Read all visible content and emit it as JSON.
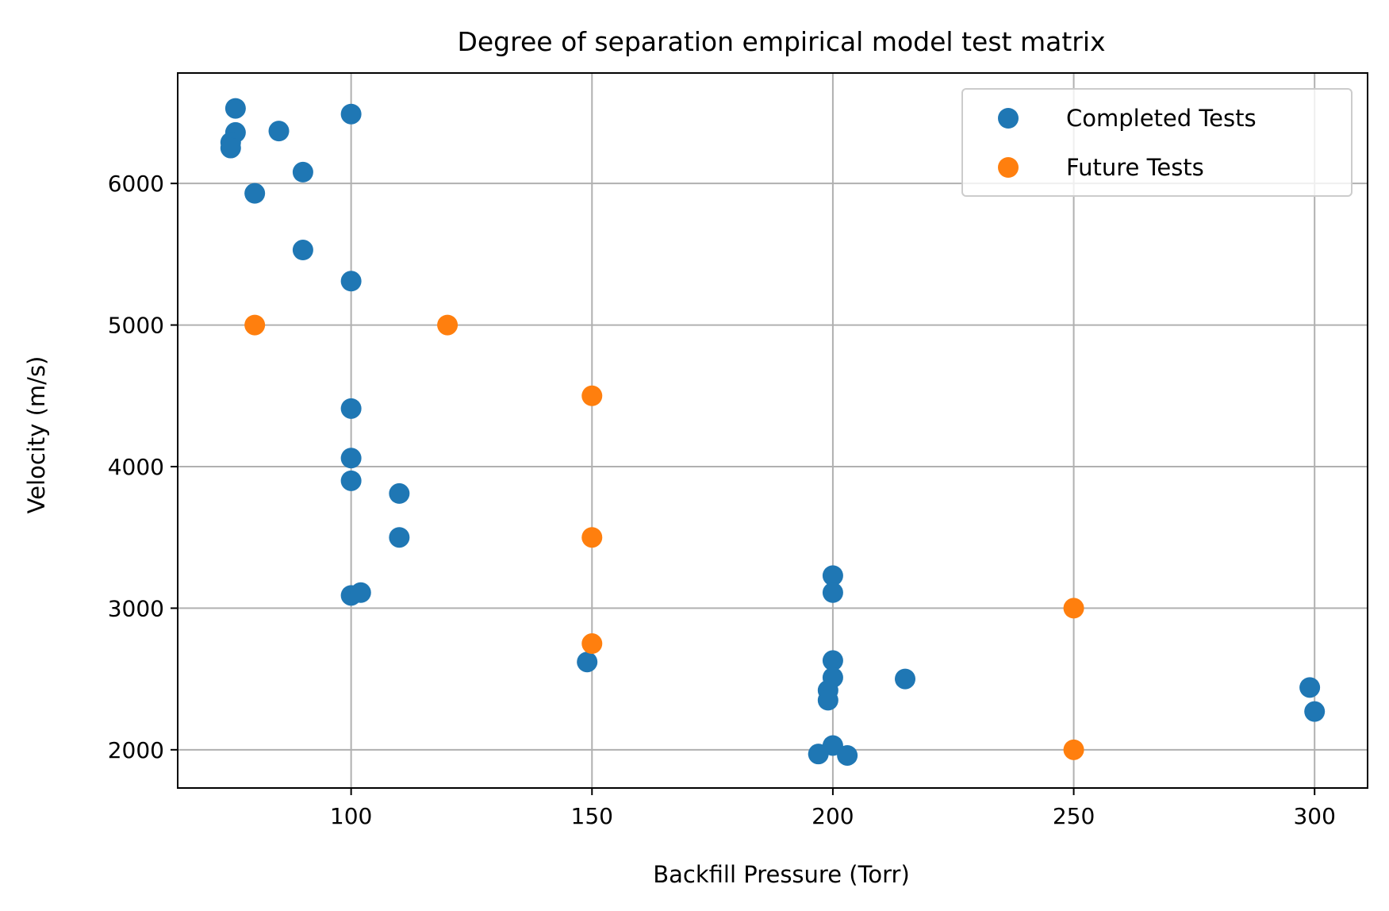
{
  "chart_data": {
    "type": "scatter",
    "title": "Degree of separation empirical model test matrix",
    "xlabel": "Backfill Pressure (Torr)",
    "ylabel": "Velocity (m/s)",
    "xlim": [
      64,
      311
    ],
    "ylim": [
      1730,
      6780
    ],
    "xticks": [
      100,
      150,
      200,
      250,
      300
    ],
    "yticks": [
      2000,
      3000,
      4000,
      5000,
      6000
    ],
    "xtick_labels": [
      "100",
      "150",
      "200",
      "250",
      "300"
    ],
    "ytick_labels": [
      "2000",
      "3000",
      "4000",
      "5000",
      "6000"
    ],
    "grid": true,
    "legend_position": "top-right",
    "series": [
      {
        "name": "Completed Tests",
        "color": "#1f77b4",
        "points": [
          [
            76,
            6530
          ],
          [
            76,
            6360
          ],
          [
            75,
            6290
          ],
          [
            75,
            6250
          ],
          [
            85,
            6370
          ],
          [
            100,
            6490
          ],
          [
            90,
            6080
          ],
          [
            80,
            5930
          ],
          [
            90,
            5530
          ],
          [
            100,
            5310
          ],
          [
            100,
            4410
          ],
          [
            100,
            4060
          ],
          [
            100,
            3900
          ],
          [
            110,
            3810
          ],
          [
            110,
            3500
          ],
          [
            100,
            3090
          ],
          [
            102,
            3110
          ],
          [
            149,
            2620
          ],
          [
            200,
            3230
          ],
          [
            200,
            3110
          ],
          [
            200,
            2630
          ],
          [
            200,
            2510
          ],
          [
            199,
            2420
          ],
          [
            199,
            2350
          ],
          [
            215,
            2500
          ],
          [
            197,
            1970
          ],
          [
            200,
            2030
          ],
          [
            203,
            1960
          ],
          [
            299,
            2440
          ],
          [
            300,
            2270
          ]
        ]
      },
      {
        "name": "Future Tests",
        "color": "#ff7f0e",
        "points": [
          [
            80,
            5000
          ],
          [
            120,
            5000
          ],
          [
            150,
            4500
          ],
          [
            150,
            3500
          ],
          [
            150,
            2750
          ],
          [
            250,
            3000
          ],
          [
            250,
            2000
          ]
        ]
      }
    ]
  }
}
